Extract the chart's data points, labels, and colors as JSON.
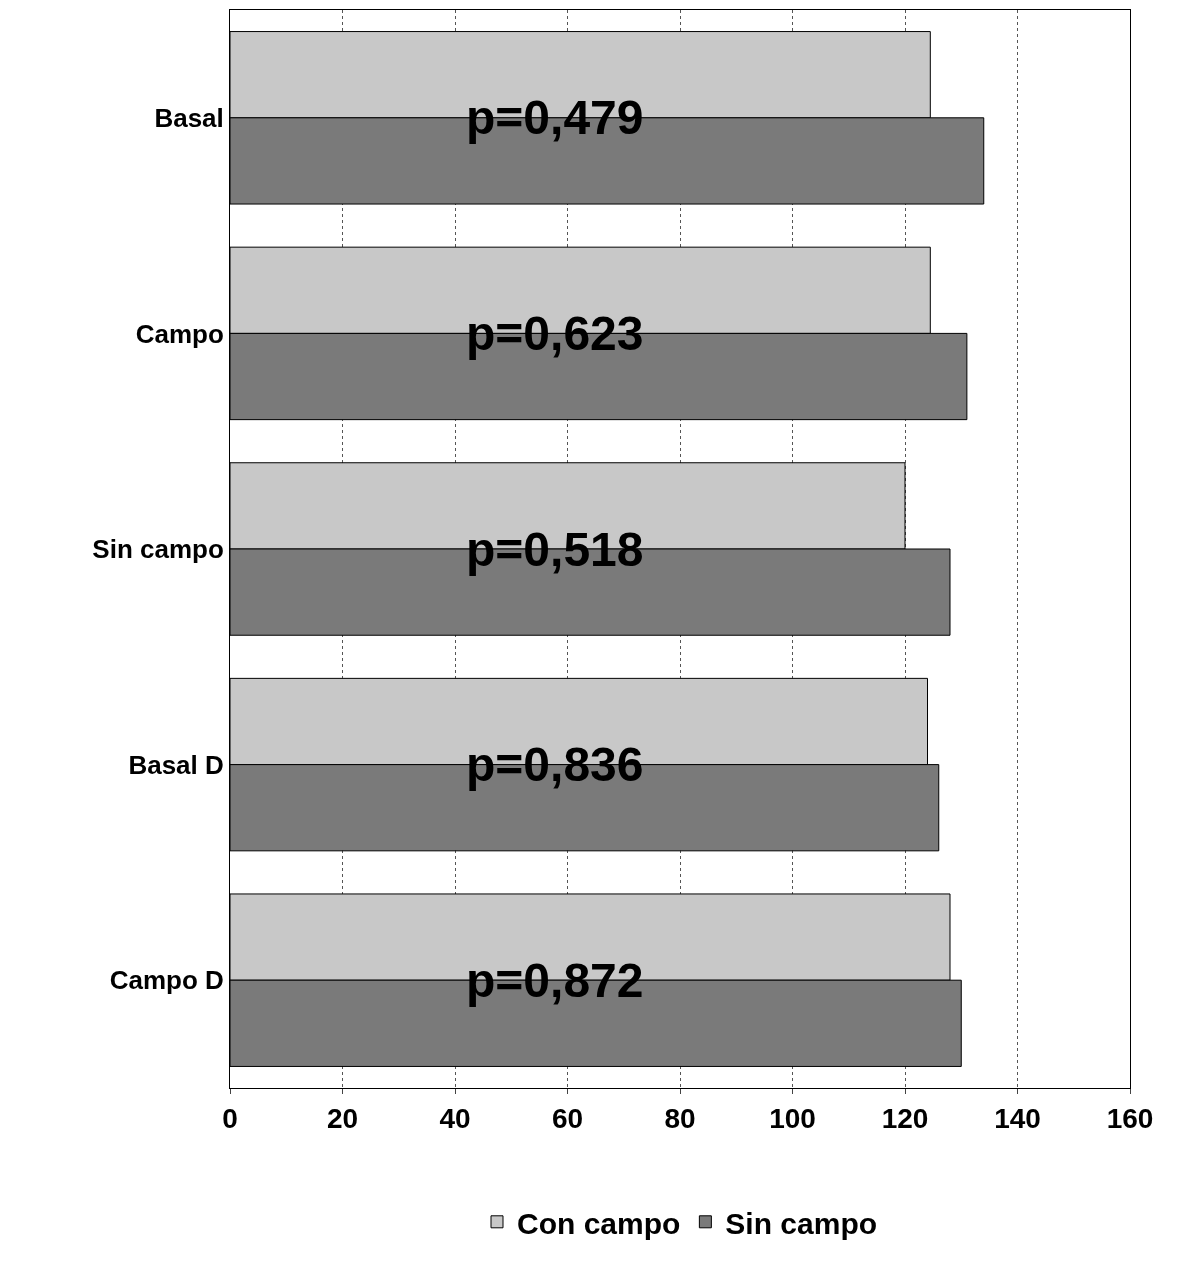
{
  "chart_data": {
    "type": "bar",
    "orientation": "horizontal",
    "categories": [
      "Basal",
      "Campo",
      "Sin campo",
      "Basal D",
      "Campo D"
    ],
    "series": [
      {
        "name": "Con campo",
        "color": "#c8c8c8",
        "values": [
          124.5,
          124.5,
          120,
          124,
          128
        ]
      },
      {
        "name": "Sin campo",
        "color": "#7a7a7a",
        "values": [
          134,
          131,
          128,
          126,
          130
        ]
      }
    ],
    "xlim": [
      0,
      160
    ],
    "xticks": [
      0,
      20,
      40,
      60,
      80,
      100,
      120,
      140,
      160
    ],
    "grid": "x",
    "legend": "bottom",
    "annotations": [
      "p=0,479",
      "p=0,623",
      "p=0,518",
      "p=0,836",
      "p=0,872"
    ]
  }
}
